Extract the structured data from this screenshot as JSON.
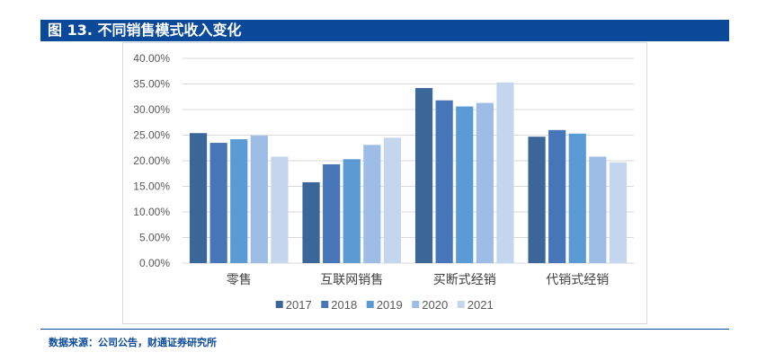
{
  "header": {
    "title": "图 13. 不同销售模式收入变化"
  },
  "source": {
    "text": "数据来源：公司公告，财通证券研究所"
  },
  "colors": {
    "brand": "#0b4a9a",
    "grid": "#d9d9d9",
    "axis_text": "#595959",
    "series": [
      "#3a6698",
      "#4776b8",
      "#5b9bd5",
      "#9dbde6",
      "#c3d6ee"
    ]
  },
  "chart_data": {
    "type": "bar",
    "categories": [
      "零售",
      "互联网销售",
      "买断式经销",
      "代销式经销"
    ],
    "series": [
      {
        "name": "2017",
        "values": [
          25.4,
          15.8,
          34.2,
          24.7
        ]
      },
      {
        "name": "2018",
        "values": [
          23.5,
          19.3,
          31.8,
          26.0
        ]
      },
      {
        "name": "2019",
        "values": [
          24.2,
          20.3,
          30.6,
          25.3
        ]
      },
      {
        "name": "2020",
        "values": [
          24.9,
          23.1,
          31.3,
          20.8
        ]
      },
      {
        "name": "2021",
        "values": [
          20.8,
          24.5,
          35.3,
          19.7
        ]
      }
    ],
    "yticks": [
      "0.00%",
      "5.00%",
      "10.00%",
      "15.00%",
      "20.00%",
      "25.00%",
      "30.00%",
      "35.00%",
      "40.00%"
    ],
    "ylim": [
      0,
      40
    ],
    "unit": "%",
    "grid": true,
    "legend_position": "bottom"
  }
}
